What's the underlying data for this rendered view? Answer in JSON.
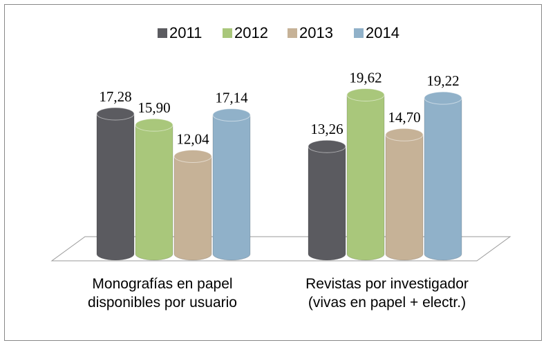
{
  "chart_data": {
    "type": "bar",
    "categories": [
      "Monografías en papel disponibles por usuario",
      "Revistas por investigador (vivas en papel + electr.)"
    ],
    "series": [
      {
        "name": "2011",
        "color": "#5b5b60",
        "values": [
          17.28,
          13.26
        ],
        "value_labels": [
          "17,28",
          "13,26"
        ]
      },
      {
        "name": "2012",
        "color": "#a9c77b",
        "values": [
          15.9,
          19.62
        ],
        "value_labels": [
          "15,90",
          "19,62"
        ]
      },
      {
        "name": "2013",
        "color": "#c6b297",
        "values": [
          12.04,
          14.7
        ],
        "value_labels": [
          "12,04",
          "14,70"
        ]
      },
      {
        "name": "2014",
        "color": "#90b1c9",
        "values": [
          17.14,
          19.22
        ],
        "value_labels": [
          "17,14",
          "19,22"
        ]
      }
    ]
  }
}
